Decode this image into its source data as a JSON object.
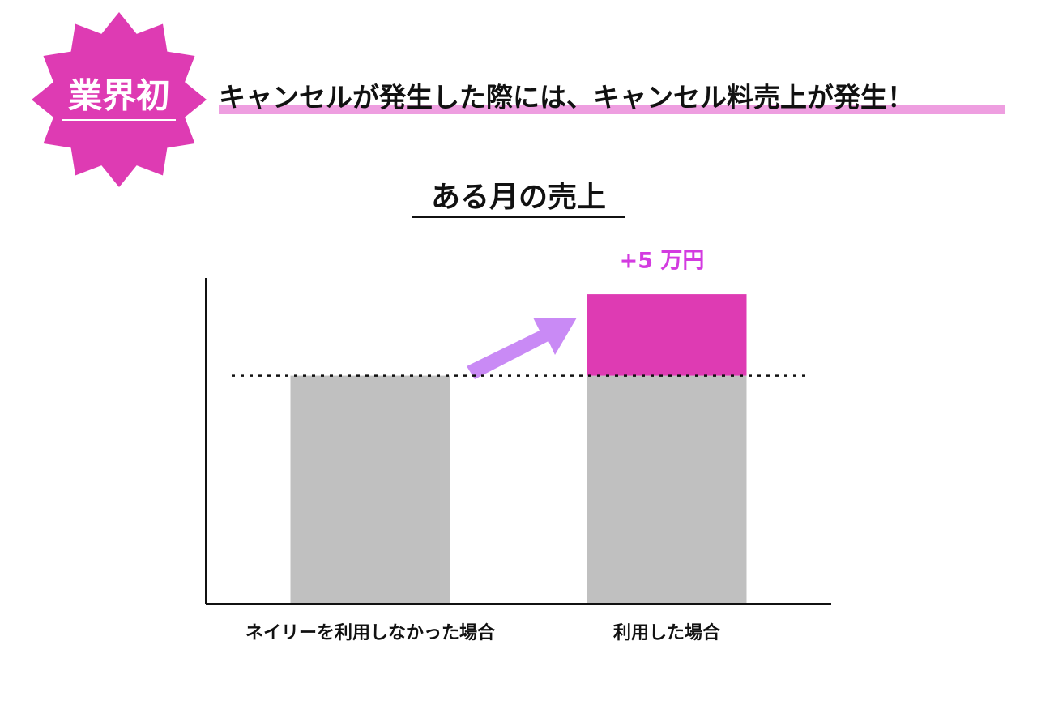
{
  "header": {
    "badge": "業界初",
    "headline": "キャンセルが発生した際には、キャンセル料売上が発生！"
  },
  "chart_data": {
    "type": "bar",
    "stacked": true,
    "title": "ある月の売上",
    "categories": [
      "ネイリーを利用しなかった場合",
      "利用した場合"
    ],
    "series": [
      {
        "color": "#c0c0c0",
        "values": [
          14,
          14
        ]
      },
      {
        "color": "#de3bb3",
        "values": [
          null,
          5
        ],
        "value_labels": [
          null,
          "+5 万円"
        ],
        "label_color": "#d33be0"
      }
    ],
    "ylim": [
      0,
      20
    ]
  }
}
